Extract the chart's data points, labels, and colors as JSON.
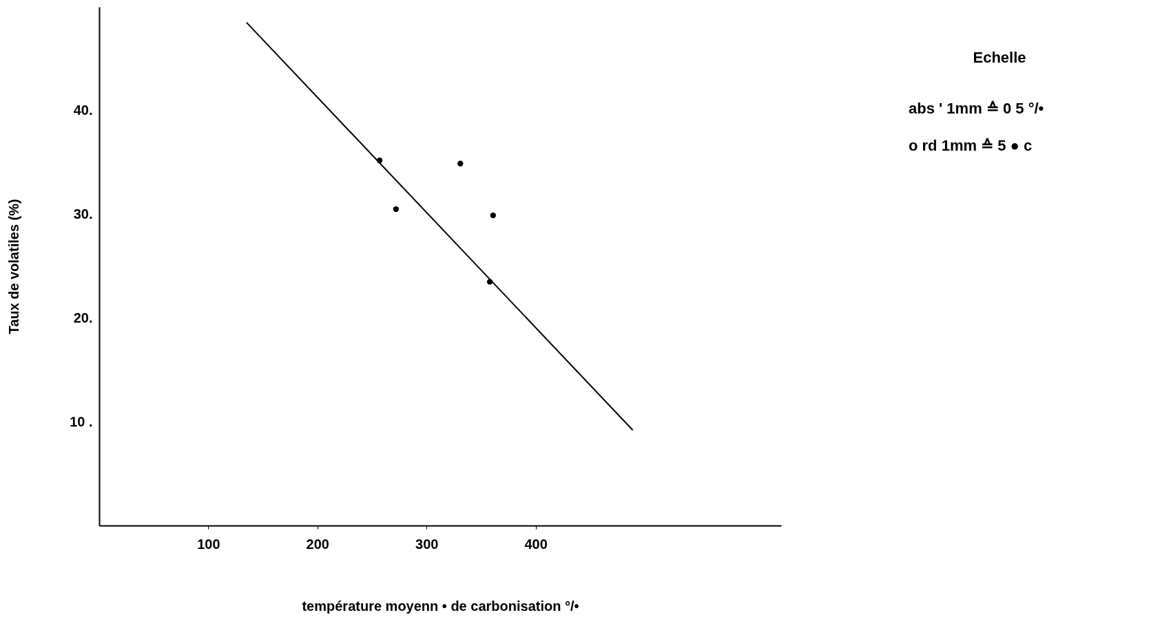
{
  "chart_data": {
    "type": "scatter",
    "xlabel": "température moyenn • de carbonisation °/•",
    "ylabel": "Taux de volatiles (%)",
    "annotations": [
      "Echelle",
      "abs ' 1mm ≙ 0 5 °/•",
      "o rd 1mm ≙ 5 ● c"
    ],
    "xlim": [
      0,
      625
    ],
    "ylim": [
      0,
      50
    ],
    "xticks": [
      100,
      200,
      300,
      400
    ],
    "yticks": [
      {
        "value": 10,
        "label": "10 ."
      },
      {
        "value": 20,
        "label": "20."
      },
      {
        "value": 30,
        "label": "30."
      },
      {
        "value": 40,
        "label": "40."
      }
    ],
    "grid": false,
    "series": [
      {
        "color": "#000000",
        "marker": "circle",
        "x": [
          257,
          272,
          331,
          358,
          361
        ],
        "values": [
          35.2,
          30.5,
          34.9,
          23.5,
          29.9
        ]
      },
      {
        "type": "line",
        "color": "#000000",
        "line_style": "solid",
        "x": [
          135,
          489
        ],
        "values": [
          48.5,
          9.2
        ]
      }
    ]
  }
}
